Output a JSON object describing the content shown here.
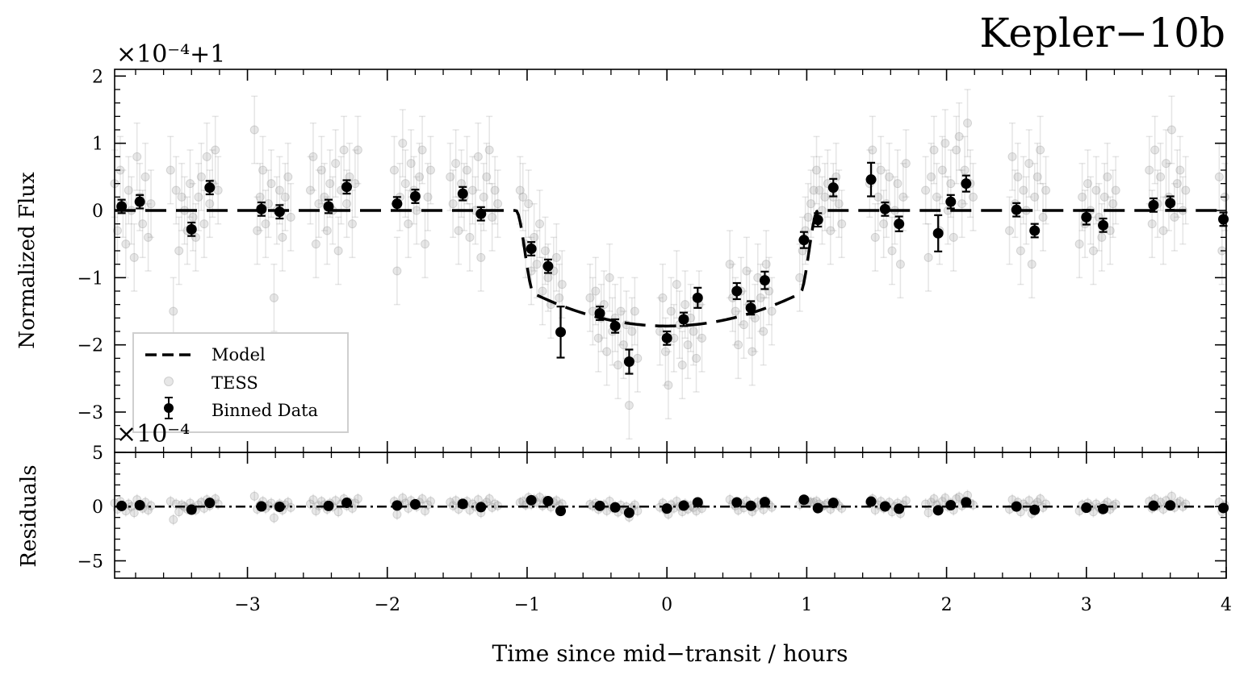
{
  "chart_data": {
    "type": "scatter",
    "title": "Kepler−10b",
    "xlabel": "Time since mid−transit / hours",
    "xlim": [
      -3.95,
      4.0
    ],
    "x_ticks": [
      -3,
      -2,
      -1,
      0,
      1,
      2,
      3,
      4
    ],
    "x_tick_labels": [
      "−3",
      "−2",
      "−1",
      "0",
      "1",
      "2",
      "3",
      "4"
    ],
    "grid": false,
    "legend_position": "lower-left",
    "model": {
      "depth": 1.72,
      "t1": 1.08,
      "t2": 0.95
    },
    "panels": [
      {
        "id": "flux",
        "ylabel": "Normalized Flux",
        "offset_label": "×10⁻⁴+1",
        "ylim": [
          -3.6,
          2.1
        ],
        "y_ticks": [
          -3,
          -2,
          -1,
          0,
          1,
          2
        ],
        "y_tick_labels": [
          "−3",
          "−2",
          "−1",
          "0",
          "1",
          "2"
        ]
      },
      {
        "id": "residuals",
        "ylabel": "Residuals",
        "offset_label": "×10⁻⁴",
        "ylim": [
          -6.6,
          5.0
        ],
        "y_ticks": [
          -5,
          0,
          5
        ],
        "y_tick_labels": [
          "−5",
          "0",
          "5"
        ]
      }
    ],
    "series": [
      {
        "name": "Model",
        "style": "dashed-line",
        "color": "#000000"
      },
      {
        "name": "TESS",
        "style": "faint-points",
        "color": "#9a9a9a",
        "x": [
          -3.95,
          -3.93,
          -3.91,
          -3.89,
          -3.87,
          -3.85,
          -3.83,
          -3.81,
          -3.79,
          -3.77,
          -3.75,
          -3.73,
          -3.71,
          -3.69,
          -3.55,
          -3.53,
          -3.51,
          -3.49,
          -3.47,
          -3.45,
          -3.43,
          -3.41,
          -3.39,
          -3.37,
          -3.35,
          -3.33,
          -3.31,
          -3.29,
          -3.27,
          -3.25,
          -3.23,
          -3.21,
          -2.95,
          -2.93,
          -2.91,
          -2.89,
          -2.87,
          -2.85,
          -2.83,
          -2.81,
          -2.79,
          -2.77,
          -2.75,
          -2.73,
          -2.71,
          -2.69,
          -2.55,
          -2.53,
          -2.51,
          -2.49,
          -2.47,
          -2.45,
          -2.43,
          -2.41,
          -2.39,
          -2.37,
          -2.35,
          -2.33,
          -2.31,
          -2.29,
          -2.27,
          -2.25,
          -2.23,
          -2.21,
          -1.95,
          -1.93,
          -1.91,
          -1.89,
          -1.87,
          -1.85,
          -1.83,
          -1.81,
          -1.79,
          -1.77,
          -1.75,
          -1.73,
          -1.71,
          -1.69,
          -1.55,
          -1.53,
          -1.51,
          -1.49,
          -1.47,
          -1.45,
          -1.43,
          -1.41,
          -1.39,
          -1.37,
          -1.35,
          -1.33,
          -1.31,
          -1.29,
          -1.27,
          -1.25,
          -1.23,
          -1.21,
          -1.05,
          -1.03,
          -1.01,
          -0.99,
          -0.97,
          -0.95,
          -0.93,
          -0.91,
          -0.89,
          -0.87,
          -0.85,
          -0.83,
          -0.81,
          -0.79,
          -0.77,
          -0.75,
          -0.55,
          -0.53,
          -0.51,
          -0.49,
          -0.47,
          -0.45,
          -0.43,
          -0.41,
          -0.39,
          -0.37,
          -0.35,
          -0.33,
          -0.31,
          -0.29,
          -0.27,
          -0.25,
          -0.23,
          -0.21,
          -0.05,
          -0.03,
          -0.01,
          0.01,
          0.03,
          0.05,
          0.07,
          0.09,
          0.11,
          0.13,
          0.15,
          0.17,
          0.19,
          0.21,
          0.23,
          0.25,
          0.45,
          0.47,
          0.49,
          0.51,
          0.53,
          0.55,
          0.57,
          0.59,
          0.61,
          0.63,
          0.65,
          0.67,
          0.69,
          0.71,
          0.73,
          0.75,
          0.95,
          0.97,
          0.99,
          1.01,
          1.03,
          1.05,
          1.07,
          1.09,
          1.11,
          1.13,
          1.15,
          1.17,
          1.19,
          1.21,
          1.23,
          1.25,
          1.45,
          1.47,
          1.49,
          1.51,
          1.53,
          1.55,
          1.57,
          1.59,
          1.61,
          1.63,
          1.65,
          1.67,
          1.69,
          1.71,
          1.85,
          1.87,
          1.89,
          1.91,
          1.93,
          1.95,
          1.97,
          1.99,
          2.01,
          2.03,
          2.05,
          2.07,
          2.09,
          2.11,
          2.13,
          2.15,
          2.17,
          2.19,
          2.45,
          2.47,
          2.49,
          2.51,
          2.53,
          2.55,
          2.57,
          2.59,
          2.61,
          2.63,
          2.65,
          2.67,
          2.69,
          2.71,
          2.95,
          2.97,
          2.99,
          3.01,
          3.03,
          3.05,
          3.07,
          3.09,
          3.11,
          3.13,
          3.15,
          3.17,
          3.19,
          3.21,
          3.45,
          3.47,
          3.49,
          3.51,
          3.53,
          3.55,
          3.57,
          3.59,
          3.61,
          3.63,
          3.65,
          3.67,
          3.69,
          3.71,
          3.95,
          3.97,
          3.99
        ],
        "y": [
          0.4,
          -0.3,
          0.6,
          0.1,
          -0.5,
          0.3,
          0.0,
          -0.7,
          0.8,
          0.2,
          -0.2,
          0.5,
          -0.4,
          0.1,
          0.6,
          -1.5,
          0.3,
          -0.6,
          0.2,
          0.0,
          -0.3,
          0.4,
          -0.1,
          -0.4,
          0.2,
          0.5,
          -0.2,
          0.8,
          0.1,
          0.4,
          0.9,
          0.3,
          1.2,
          -0.3,
          0.2,
          0.6,
          -0.2,
          0.1,
          0.4,
          -1.3,
          0.0,
          0.3,
          -0.4,
          0.2,
          0.5,
          -0.1,
          0.3,
          0.8,
          -0.5,
          0.1,
          0.6,
          0.2,
          -0.3,
          0.4,
          0.0,
          0.7,
          -0.6,
          0.3,
          0.9,
          0.1,
          0.5,
          -0.2,
          0.4,
          0.9,
          0.6,
          -0.9,
          0.2,
          1.0,
          0.4,
          -0.2,
          0.7,
          0.3,
          0.0,
          0.5,
          0.9,
          -0.5,
          0.2,
          0.6,
          0.5,
          0.1,
          0.7,
          -0.3,
          0.4,
          0.2,
          0.6,
          -0.4,
          0.3,
          0.0,
          0.8,
          -0.7,
          0.2,
          0.5,
          0.9,
          -0.1,
          0.3,
          0.1,
          0.3,
          0.2,
          -0.5,
          0.1,
          -0.9,
          -0.4,
          -0.8,
          -0.2,
          -1.2,
          -0.6,
          -1.0,
          -1.4,
          -0.9,
          -0.7,
          -1.3,
          -1.1,
          -1.3,
          -1.5,
          -1.2,
          -1.9,
          -1.6,
          -1.4,
          -2.1,
          -1.0,
          -1.8,
          -1.6,
          -2.3,
          -1.5,
          -2.0,
          -1.7,
          -2.9,
          -1.8,
          -1.5,
          -2.2,
          -1.8,
          -1.3,
          -2.1,
          -2.6,
          -1.5,
          -1.9,
          -1.1,
          -1.7,
          -2.3,
          -1.4,
          -2.0,
          -1.6,
          -1.8,
          -2.2,
          -1.4,
          -1.9,
          -0.8,
          -1.3,
          -1.5,
          -2.0,
          -1.2,
          -1.7,
          -0.9,
          -1.4,
          -2.1,
          -1.6,
          -1.0,
          -1.3,
          -1.8,
          -0.8,
          -1.2,
          -1.5,
          -1.0,
          -0.6,
          -0.3,
          -0.1,
          0.1,
          0.3,
          0.6,
          0.3,
          0.0,
          0.2,
          0.4,
          -0.3,
          0.2,
          0.5,
          0.1,
          -0.2,
          0.4,
          0.9,
          -0.4,
          0.2,
          0.6,
          -0.2,
          0.1,
          0.5,
          -0.6,
          0.0,
          0.4,
          -0.8,
          0.2,
          0.7,
          0.3,
          -0.7,
          0.5,
          0.9,
          0.2,
          -0.3,
          0.6,
          1.0,
          0.0,
          0.4,
          -0.4,
          0.9,
          1.1,
          0.1,
          0.6,
          1.3,
          0.4,
          0.2,
          -0.3,
          0.8,
          0.1,
          0.5,
          -0.6,
          0.3,
          0.0,
          0.7,
          -0.8,
          0.2,
          0.5,
          0.9,
          -0.1,
          0.3,
          -0.5,
          0.2,
          -0.2,
          0.4,
          0.0,
          -0.6,
          0.3,
          -0.1,
          -0.4,
          0.2,
          0.5,
          -0.3,
          0.1,
          0.3,
          0.6,
          -0.2,
          0.9,
          0.1,
          0.5,
          -0.3,
          0.7,
          0.2,
          1.2,
          -0.1,
          0.4,
          0.6,
          0.0,
          0.3,
          0.5,
          -0.6,
          0.2
        ]
      },
      {
        "name": "Binned Data",
        "style": "points-with-error-bars",
        "color": "#000000",
        "x": [
          -3.9,
          -3.77,
          -3.4,
          -3.27,
          -2.9,
          -2.77,
          -2.42,
          -2.29,
          -1.93,
          -1.8,
          -1.46,
          -1.33,
          -0.97,
          -0.85,
          -0.76,
          -0.48,
          -0.37,
          -0.27,
          0.0,
          0.12,
          0.22,
          0.5,
          0.6,
          0.7,
          0.98,
          1.08,
          1.19,
          1.46,
          1.56,
          1.66,
          1.94,
          2.03,
          2.14,
          2.5,
          2.63,
          3.0,
          3.12,
          3.48,
          3.6,
          3.98
        ],
        "y": [
          0.06,
          0.13,
          -0.28,
          0.34,
          0.02,
          -0.02,
          0.06,
          0.35,
          0.1,
          0.21,
          0.25,
          -0.05,
          -0.57,
          -0.83,
          -1.81,
          -1.53,
          -1.72,
          -2.25,
          -1.9,
          -1.62,
          -1.3,
          -1.2,
          -1.45,
          -1.04,
          -0.44,
          -0.14,
          0.34,
          0.46,
          0.02,
          -0.2,
          -0.34,
          0.13,
          0.4,
          0.01,
          -0.3,
          -0.1,
          -0.22,
          0.08,
          0.11,
          -0.13
        ],
        "yerr": [
          0.1,
          0.1,
          0.1,
          0.1,
          0.1,
          0.1,
          0.1,
          0.1,
          0.1,
          0.1,
          0.1,
          0.1,
          0.1,
          0.1,
          0.38,
          0.1,
          0.1,
          0.18,
          0.1,
          0.1,
          0.15,
          0.12,
          0.1,
          0.13,
          0.12,
          0.1,
          0.13,
          0.25,
          0.1,
          0.11,
          0.27,
          0.1,
          0.12,
          0.1,
          0.1,
          0.11,
          0.1,
          0.1,
          0.1,
          0.1
        ]
      }
    ]
  }
}
